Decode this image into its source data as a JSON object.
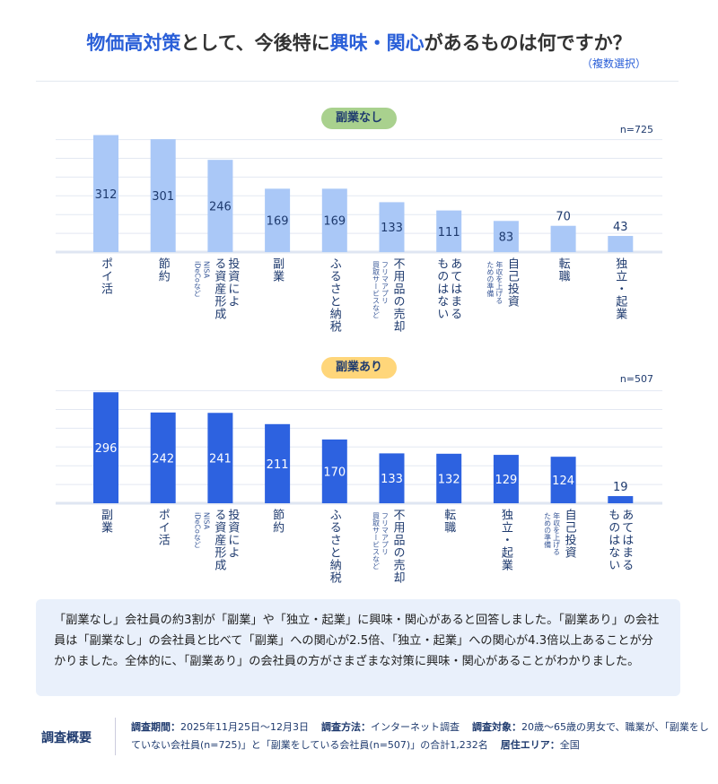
{
  "title": {
    "pre": "物価高対策",
    "mid": "として、今後特に",
    "hl": "興味・関心",
    "post": "があるものは何ですか？"
  },
  "subtitle": "（複数選択）",
  "chart_data": [
    {
      "type": "bar",
      "title": "副業なし",
      "n": "n=725",
      "badge_color": "#a9d18e",
      "bar_color": "#aac8f7",
      "label_color": "#1e3a6e",
      "grid_step": 50,
      "ylim": [
        0,
        300
      ],
      "categories": [
        {
          "main": "ポイ活"
        },
        {
          "main": "節約"
        },
        {
          "main": "投資による資産形成",
          "sub": "NISA iDeCoなど"
        },
        {
          "main": "副業"
        },
        {
          "main": "ふるさと納税"
        },
        {
          "main": "不用品の売却",
          "sub": "フリマアプリ 買取サービスなど"
        },
        {
          "main": "あてはまる ものはない"
        },
        {
          "main": "自己投資",
          "sub": "年収を上げる ための準備"
        },
        {
          "main": "転職"
        },
        {
          "main": "独立・起業"
        }
      ],
      "values": [
        312,
        301,
        246,
        169,
        169,
        133,
        111,
        83,
        70,
        43
      ]
    },
    {
      "type": "bar",
      "title": "副業あり",
      "n": "n=507",
      "badge_color": "#ffd67a",
      "bar_color": "#2d62e0",
      "label_color": "#ffffff",
      "grid_step": 50,
      "ylim": [
        0,
        300
      ],
      "categories": [
        {
          "main": "副業"
        },
        {
          "main": "ポイ活"
        },
        {
          "main": "投資による資産形成",
          "sub": "NISA iDeCoなど"
        },
        {
          "main": "節約"
        },
        {
          "main": "ふるさと納税"
        },
        {
          "main": "不用品の売却",
          "sub": "フリマアプリ 買取サービスなど"
        },
        {
          "main": "転職"
        },
        {
          "main": "独立・起業"
        },
        {
          "main": "自己投資",
          "sub": "年収を上げる ための準備"
        },
        {
          "main": "あてはまる ものはない"
        }
      ],
      "values": [
        296,
        242,
        241,
        211,
        170,
        133,
        132,
        129,
        124,
        19
      ]
    }
  ],
  "note": "「副業なし」会社員の約3割が「副業」や「独立・起業」に興味・関心があると回答しました。「副業あり」の会社員は「副業なし」の会社員と比べて「副業」への関心が2.5倍、「独立・起業」への関心が4.3倍以上あることが分かりました。全体的に、「副業あり」の会社員の方がさまざまな対策に興味・関心があることがわかりました。",
  "footer": {
    "heading": "調査概要",
    "period_label": "調査期間：",
    "period": "2025年11月25日〜12月3日",
    "method_label": "調査方法：",
    "method": "インターネット調査",
    "target_label": "調査対象：",
    "target": "20歳〜65歳の男女で、職業が、「副業をしていない会社員(n=725)」と「副業をしている会社員(n=507)」の合計1,232名",
    "area_label": "居住エリア：",
    "area": "全国"
  }
}
